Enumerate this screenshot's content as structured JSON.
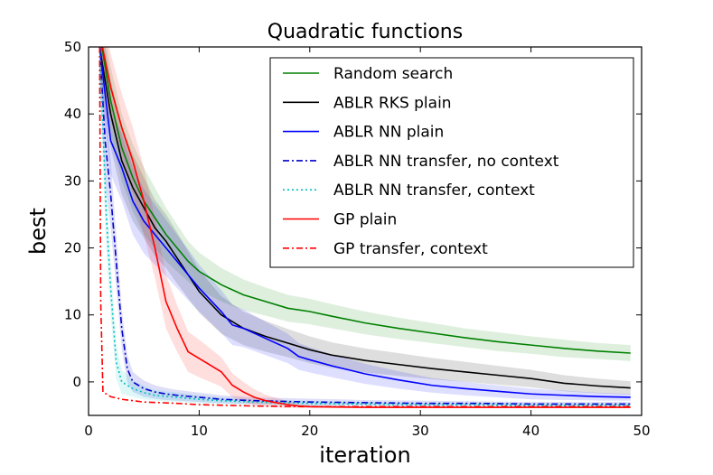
{
  "chart_data": {
    "type": "line",
    "title": "Quadratic functions",
    "xlabel": "iteration",
    "ylabel": "best",
    "xlim": [
      0,
      50
    ],
    "ylim": [
      -5,
      50
    ],
    "xticks": [
      0,
      10,
      20,
      30,
      40,
      50
    ],
    "yticks": [
      0,
      10,
      20,
      30,
      40,
      50
    ],
    "legend_position": "top-right",
    "series": [
      {
        "name": "Random search",
        "color": "#008000",
        "dash": "solid",
        "x": [
          1,
          2,
          3,
          4,
          5,
          6,
          7,
          8,
          9,
          10,
          12,
          14,
          16,
          18,
          20,
          22,
          25,
          28,
          31,
          34,
          37,
          40,
          43,
          46,
          49
        ],
        "y": [
          52,
          42,
          35,
          30.5,
          27,
          24.5,
          22,
          20,
          18,
          16.5,
          14.5,
          13,
          12,
          11,
          10.5,
          9.8,
          8.8,
          8.0,
          7.3,
          6.6,
          6.0,
          5.5,
          5.0,
          4.6,
          4.3
        ],
        "band": [
          5,
          5,
          5,
          5,
          5,
          4.5,
          4.0,
          3.5,
          3.0,
          2.8,
          2.5,
          2.3,
          2.1,
          2.0,
          1.9,
          1.8,
          1.7,
          1.6,
          1.5,
          1.4,
          1.4,
          1.3,
          1.3,
          1.2,
          1.2
        ]
      },
      {
        "name": "ABLR RKS plain",
        "color": "#000000",
        "dash": "solid",
        "x": [
          1,
          2,
          3,
          4,
          5,
          6,
          7,
          8,
          9,
          10,
          12,
          14,
          16,
          18,
          20,
          22,
          25,
          28,
          31,
          34,
          37,
          40,
          43,
          46,
          49
        ],
        "y": [
          50,
          40,
          33,
          29,
          26,
          23,
          21,
          18.5,
          16,
          13.5,
          10,
          8,
          6.8,
          5.8,
          4.8,
          4.0,
          3.2,
          2.6,
          2.0,
          1.5,
          1.0,
          0.5,
          -0.2,
          -0.6,
          -0.9
        ],
        "band": [
          5,
          5,
          5,
          5,
          4.5,
          4.2,
          4.0,
          3.8,
          3.5,
          3.2,
          2.8,
          2.5,
          2.3,
          2.1,
          2.0,
          1.9,
          1.8,
          1.7,
          1.6,
          1.5,
          1.4,
          1.3,
          1.2,
          1.1,
          1.0
        ]
      },
      {
        "name": "ABLR NN plain",
        "color": "#0000ff",
        "dash": "solid",
        "x": [
          1,
          2,
          3,
          4,
          5,
          6,
          7,
          8,
          9,
          10,
          12,
          13,
          14,
          16,
          18,
          19,
          20,
          22,
          25,
          28,
          31,
          34,
          37,
          40,
          43,
          46,
          49
        ],
        "y": [
          50,
          36,
          32,
          27,
          24,
          22,
          20,
          18,
          16,
          14,
          10.5,
          8.5,
          8,
          6.5,
          5.0,
          3.8,
          3.3,
          2.4,
          1.2,
          0.3,
          -0.5,
          -1.0,
          -1.4,
          -1.8,
          -2.0,
          -2.2,
          -2.3
        ],
        "band": [
          5,
          5,
          5,
          5,
          4.8,
          4.5,
          4.2,
          4.0,
          3.8,
          3.5,
          3.2,
          3.0,
          2.8,
          2.5,
          2.2,
          2.0,
          1.9,
          1.7,
          1.5,
          1.3,
          1.1,
          1.0,
          0.9,
          0.8,
          0.7,
          0.6,
          0.5
        ]
      },
      {
        "name": "ABLR NN transfer, no context",
        "color": "#0000cc",
        "dash": "dashdot",
        "x": [
          1,
          1.5,
          2,
          2.5,
          3,
          3.5,
          4,
          5,
          6,
          7,
          8,
          10,
          12,
          15,
          20,
          25,
          30,
          35,
          40,
          45,
          49
        ],
        "y": [
          50,
          36,
          28,
          18,
          8,
          2,
          0,
          -1,
          -1.5,
          -1.8,
          -2.0,
          -2.3,
          -2.6,
          -2.8,
          -3.0,
          -3.1,
          -3.2,
          -3.2,
          -3.3,
          -3.3,
          -3.3
        ],
        "band": [
          6,
          6,
          5,
          4,
          3,
          2,
          1.5,
          1.2,
          1.0,
          0.9,
          0.8,
          0.7,
          0.6,
          0.5,
          0.5,
          0.4,
          0.4,
          0.3,
          0.3,
          0.3,
          0.3
        ]
      },
      {
        "name": "ABLR NN transfer, context",
        "color": "#00bfbf",
        "dash": "dotted",
        "x": [
          1,
          1.3,
          1.6,
          2,
          2.5,
          3,
          4,
          5,
          6,
          8,
          10,
          12,
          15,
          20,
          25,
          30,
          35,
          40,
          45,
          49
        ],
        "y": [
          50,
          38,
          25,
          14,
          3,
          0,
          -1,
          -1.6,
          -2.0,
          -2.3,
          -2.6,
          -2.8,
          -3.0,
          -3.2,
          -3.3,
          -3.4,
          -3.4,
          -3.5,
          -3.5,
          -3.5
        ],
        "band": [
          6,
          6,
          5,
          4,
          2.5,
          1.8,
          1.2,
          1.0,
          0.8,
          0.7,
          0.6,
          0.5,
          0.4,
          0.4,
          0.3,
          0.3,
          0.3,
          0.3,
          0.3,
          0.3
        ]
      },
      {
        "name": "GP plain",
        "color": "#ff0000",
        "dash": "solid",
        "x": [
          1,
          2,
          3,
          4,
          5,
          6,
          7,
          8,
          9,
          10,
          11,
          12,
          13,
          14,
          15,
          16,
          17,
          18,
          19,
          20,
          25,
          30,
          35,
          40,
          45,
          49
        ],
        "y": [
          52,
          44,
          38,
          33,
          27,
          20,
          12,
          8,
          4.5,
          3.5,
          2.5,
          1.5,
          -0.5,
          -1.5,
          -2.3,
          -2.8,
          -3.1,
          -3.4,
          -3.6,
          -3.7,
          -3.8,
          -3.8,
          -3.8,
          -3.8,
          -3.8,
          -3.8
        ],
        "band": [
          5,
          5,
          5,
          5,
          5,
          4.5,
          4.0,
          3.5,
          3.0,
          2.8,
          2.5,
          2.2,
          1.8,
          1.5,
          1.2,
          0.9,
          0.7,
          0.5,
          0.3,
          0.2,
          0.1,
          0.1,
          0.1,
          0.1,
          0.1,
          0.1
        ]
      },
      {
        "name": "GP transfer, context",
        "color": "#ff0000",
        "dash": "dashdot",
        "x": [
          1,
          1.1,
          1.3,
          2,
          3,
          5,
          8,
          10,
          15,
          20,
          25,
          30,
          35,
          40,
          45,
          49
        ],
        "y": [
          50,
          12,
          -1.5,
          -2.2,
          -2.6,
          -3.0,
          -3.2,
          -3.4,
          -3.6,
          -3.7,
          -3.7,
          -3.7,
          -3.7,
          -3.7,
          -3.7,
          -3.7
        ],
        "band": [
          0,
          0,
          0,
          0,
          0,
          0,
          0,
          0,
          0,
          0,
          0,
          0,
          0,
          0,
          0,
          0
        ]
      }
    ]
  }
}
